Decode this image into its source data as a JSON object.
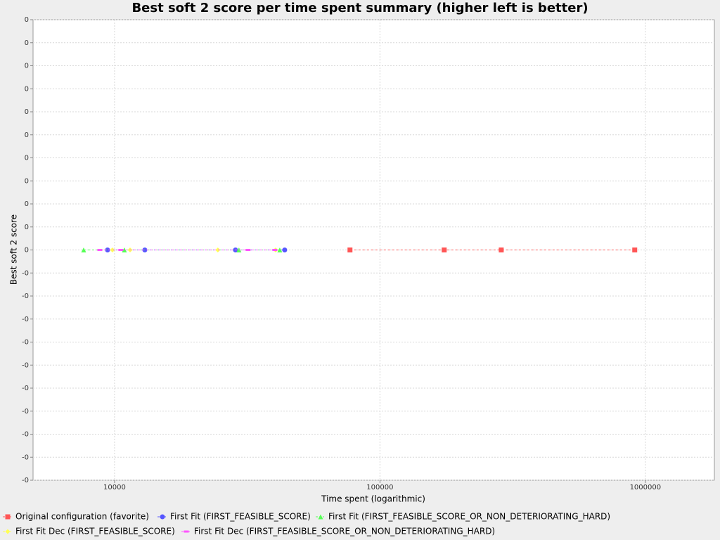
{
  "chart_data": {
    "type": "line",
    "title": "Best soft 2 score per time spent summary (higher left is better)",
    "x_label": "Time spent (logarithmic)",
    "y_label": "Best soft 2 score",
    "xscale": "log",
    "xlim": [
      4930,
      1820000
    ],
    "xticks": [
      10000,
      100000,
      1000000
    ],
    "ylim": [
      -0.5,
      0.5
    ],
    "yticks": [
      {
        "value": 0.5,
        "label": "0"
      },
      {
        "value": 0.45,
        "label": "0"
      },
      {
        "value": 0.4,
        "label": "0"
      },
      {
        "value": 0.35,
        "label": "0"
      },
      {
        "value": 0.3,
        "label": "0"
      },
      {
        "value": 0.25,
        "label": "0"
      },
      {
        "value": 0.2,
        "label": "0"
      },
      {
        "value": 0.15,
        "label": "0"
      },
      {
        "value": 0.1,
        "label": "0"
      },
      {
        "value": 0.05,
        "label": "0"
      },
      0,
      {
        "value": -0.05,
        "label": "-0"
      },
      {
        "value": -0.1,
        "label": "-0"
      },
      {
        "value": -0.15,
        "label": "-0"
      },
      {
        "value": -0.2,
        "label": "-0"
      },
      {
        "value": -0.25,
        "label": "-0"
      },
      {
        "value": -0.3,
        "label": "-0"
      },
      {
        "value": -0.35,
        "label": "-0"
      },
      {
        "value": -0.4,
        "label": "-0"
      },
      {
        "value": -0.45,
        "label": "-0"
      },
      {
        "value": -0.5,
        "label": "-0"
      }
    ],
    "grid": true,
    "legend": "bottom",
    "series": [
      {
        "name": "Original configuration (favorite)",
        "color": "#ff5555",
        "marker": "square",
        "x": [
          77100,
          174600,
          286400,
          912000
        ],
        "values": [
          0,
          0,
          0,
          0
        ]
      },
      {
        "name": "First Fit (FIRST_FEASIBLE_SCORE)",
        "color": "#5555ff",
        "marker": "circle",
        "x": [
          9408,
          13000,
          28550,
          43750
        ],
        "values": [
          0,
          0,
          0,
          0
        ]
      },
      {
        "name": "First Fit (FIRST_FEASIBLE_SCORE_OR_NON_DETERIORATING_HARD)",
        "color": "#55ff55",
        "marker": "triangle",
        "x": [
          7648,
          10890,
          29430,
          41930
        ],
        "values": [
          0,
          0,
          0,
          0
        ]
      },
      {
        "name": "First Fit Dec (FIRST_FEASIBLE_SCORE)",
        "color": "#ffff55",
        "marker": "diamond",
        "x": [
          9818,
          11440,
          24500,
          40440
        ],
        "values": [
          0,
          0,
          0,
          0
        ]
      },
      {
        "name": "First Fit Dec (FIRST_FEASIBLE_SCORE_OR_NON_DETERIORATING_HARD)",
        "color": "#ff55ff",
        "marker": "bar",
        "x": [
          8800,
          10560,
          31850,
          40180
        ],
        "values": [
          0,
          0,
          0,
          0
        ]
      }
    ]
  }
}
